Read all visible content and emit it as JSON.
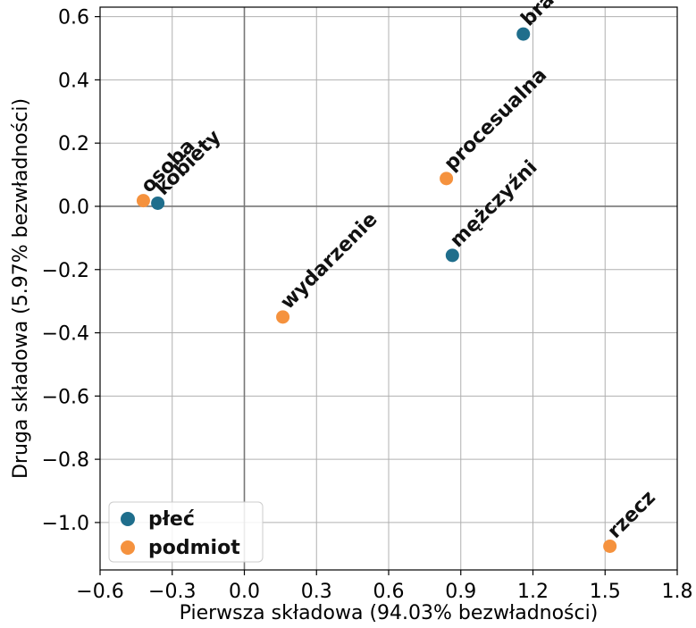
{
  "chart_data": {
    "type": "scatter",
    "xlabel": "Pierwsza składowa (94.03% bezwładności)",
    "ylabel": "Druga składowa (5.97% bezwładności)",
    "xlim": [
      -0.6,
      1.8
    ],
    "ylim": [
      -1.15,
      0.63
    ],
    "x_ticks": [
      -0.6,
      -0.3,
      0.0,
      0.3,
      0.6,
      0.9,
      1.2,
      1.5,
      1.8
    ],
    "x_tick_labels": [
      "−0.6",
      "−0.3",
      "0.0",
      "0.3",
      "0.6",
      "0.9",
      "1.2",
      "1.5",
      "1.8"
    ],
    "y_ticks": [
      0.6,
      0.4,
      0.2,
      0.0,
      -0.2,
      -0.4,
      -0.6,
      -0.8,
      -1.0
    ],
    "y_tick_labels": [
      "0.6",
      "0.4",
      "0.2",
      "0.0",
      "−0.2",
      "−0.4",
      "−0.6",
      "−0.8",
      "−1.0"
    ],
    "grid": true,
    "reference_lines": {
      "x": 0,
      "y": 0
    },
    "legend_position": "bottom-left",
    "series": [
      {
        "name": "płeć",
        "color": "#1f6e8c",
        "points": [
          {
            "label": "brak",
            "x": 1.16,
            "y": 0.545
          },
          {
            "label": "kobiety",
            "x": -0.36,
            "y": 0.01
          },
          {
            "label": "mężczyźni",
            "x": 0.865,
            "y": -0.155
          }
        ]
      },
      {
        "name": "podmiot",
        "color": "#f5923e",
        "points": [
          {
            "label": "osoba",
            "x": -0.42,
            "y": 0.018
          },
          {
            "label": "procesualna",
            "x": 0.84,
            "y": 0.088
          },
          {
            "label": "wydarzenie",
            "x": 0.16,
            "y": -0.35
          },
          {
            "label": "rzecz",
            "x": 1.52,
            "y": -1.075
          }
        ]
      }
    ]
  }
}
